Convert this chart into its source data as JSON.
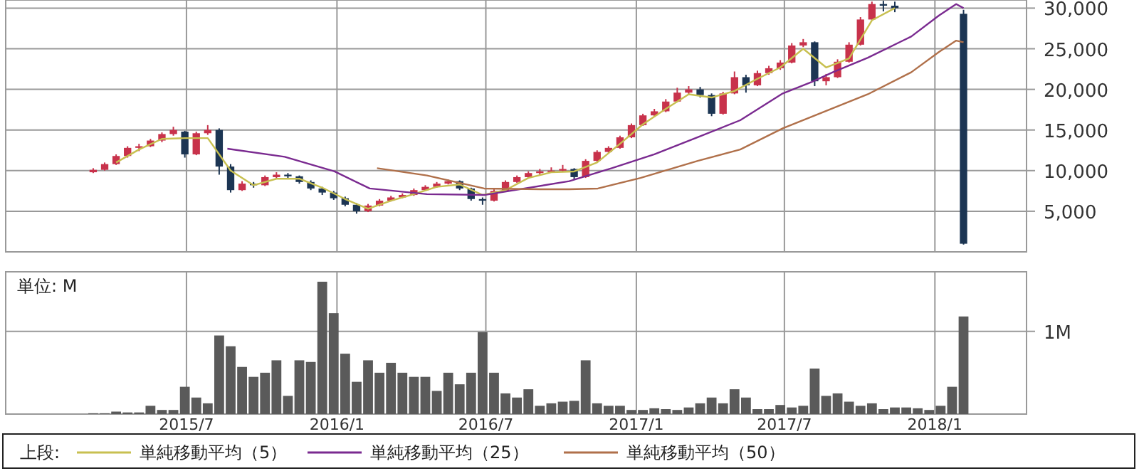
{
  "chart_data": [
    {
      "type": "candlestick",
      "x": [
        "2015-03-09",
        "2015-03-23",
        "2015-04-06",
        "2015-04-20",
        "2015-05-04",
        "2015-05-18",
        "2015-06-01",
        "2015-06-15",
        "2015-06-29",
        "2015-07-13",
        "2015-07-27",
        "2015-08-10",
        "2015-08-24",
        "2015-09-07",
        "2015-09-21",
        "2015-10-05",
        "2015-10-19",
        "2015-11-02",
        "2015-11-16",
        "2015-11-30",
        "2015-12-14",
        "2015-12-28",
        "2016-01-11",
        "2016-01-25",
        "2016-02-08",
        "2016-02-22",
        "2016-03-07",
        "2016-03-21",
        "2016-04-04",
        "2016-04-18",
        "2016-05-02",
        "2016-05-16",
        "2016-05-30",
        "2016-06-13",
        "2016-06-27",
        "2016-07-11",
        "2016-07-25",
        "2016-08-08",
        "2016-08-22",
        "2016-09-05",
        "2016-09-19",
        "2016-10-03",
        "2016-10-17",
        "2016-10-31",
        "2016-11-14",
        "2016-11-28",
        "2016-12-12",
        "2016-12-26",
        "2017-01-09",
        "2017-01-23",
        "2017-02-06",
        "2017-02-20",
        "2017-03-06",
        "2017-03-20",
        "2017-04-03",
        "2017-04-17",
        "2017-05-01",
        "2017-05-15",
        "2017-05-29",
        "2017-06-12",
        "2017-06-26",
        "2017-07-10",
        "2017-07-24",
        "2017-08-07",
        "2017-08-21",
        "2017-09-04",
        "2017-09-18",
        "2017-10-02",
        "2017-10-16",
        "2017-10-30",
        "2017-11-13",
        "2018-02-05"
      ],
      "xlim": [
        "2014-11-22",
        "2018-04-23"
      ],
      "xticks": [
        {
          "value": "2015-07-01",
          "label": null
        },
        {
          "value": "2016-01-01",
          "label": null
        },
        {
          "value": "2016-07-01",
          "label": null
        },
        {
          "value": "2017-01-01",
          "label": null
        },
        {
          "value": "2017-07-01",
          "label": null
        },
        {
          "value": "2018-01-01",
          "label": null
        }
      ],
      "ylim": [
        0,
        31000
      ],
      "yticks": [
        {
          "value": 5000,
          "label": "5,000"
        },
        {
          "value": 10000,
          "label": "10,000"
        },
        {
          "value": 15000,
          "label": "15,000"
        },
        {
          "value": 20000,
          "label": "20,000"
        },
        {
          "value": 25000,
          "label": "25,000"
        },
        {
          "value": 30000,
          "label": "30,000"
        }
      ],
      "tick_labels": "y",
      "grid": true,
      "legend": "bottom",
      "legend_title": "上段:",
      "series": [
        {
          "ohlc": [
            [
              9800,
              10300,
              9700,
              10100
            ],
            [
              10100,
              11000,
              10000,
              10800
            ],
            [
              10800,
              12000,
              10700,
              11800
            ],
            [
              11800,
              13000,
              11600,
              12800
            ],
            [
              12800,
              13300,
              12400,
              13000
            ],
            [
              13000,
              13900,
              12900,
              13700
            ],
            [
              13700,
              14700,
              13500,
              14500
            ],
            [
              14500,
              15400,
              14300,
              15000
            ],
            [
              14800,
              14900,
              11600,
              12000
            ],
            [
              12000,
              14800,
              11900,
              14600
            ],
            [
              14600,
              15600,
              14400,
              15000
            ],
            [
              15000,
              15200,
              9500,
              10500
            ],
            [
              10500,
              10800,
              7300,
              7600
            ],
            [
              7600,
              8700,
              7500,
              8400
            ],
            [
              8400,
              8600,
              7900,
              8200
            ],
            [
              8200,
              9400,
              8100,
              9200
            ],
            [
              9200,
              9800,
              9000,
              9500
            ],
            [
              9500,
              9700,
              9000,
              9300
            ],
            [
              9300,
              9400,
              8400,
              8600
            ],
            [
              8600,
              8800,
              7600,
              7800
            ],
            [
              7800,
              8000,
              7000,
              7300
            ],
            [
              7300,
              7500,
              6400,
              6600
            ],
            [
              6600,
              6800,
              5600,
              5800
            ],
            [
              5800,
              6000,
              4700,
              5000
            ],
            [
              5000,
              5900,
              4900,
              5700
            ],
            [
              5700,
              6500,
              5600,
              6300
            ],
            [
              6300,
              6900,
              6200,
              6700
            ],
            [
              6700,
              7200,
              6600,
              7000
            ],
            [
              7000,
              7800,
              6900,
              7600
            ],
            [
              7600,
              8200,
              7500,
              8000
            ],
            [
              8000,
              8600,
              7900,
              8400
            ],
            [
              8400,
              8900,
              8300,
              8700
            ],
            [
              8700,
              8800,
              7600,
              7800
            ],
            [
              7800,
              7900,
              6300,
              6500
            ],
            [
              6500,
              6700,
              5800,
              6300
            ],
            [
              6300,
              7700,
              6200,
              7500
            ],
            [
              7500,
              8800,
              7400,
              8600
            ],
            [
              8600,
              9400,
              8500,
              9200
            ],
            [
              9200,
              9900,
              9100,
              9700
            ],
            [
              9700,
              10200,
              9500,
              9900
            ],
            [
              9900,
              10400,
              9800,
              10000
            ],
            [
              10000,
              10700,
              9900,
              10200
            ],
            [
              10200,
              10300,
              8900,
              9200
            ],
            [
              9200,
              11400,
              9100,
              11200
            ],
            [
              11200,
              12500,
              11100,
              12300
            ],
            [
              12300,
              13000,
              12100,
              12800
            ],
            [
              12800,
              14300,
              12700,
              14100
            ],
            [
              14100,
              15800,
              14000,
              15600
            ],
            [
              15600,
              17000,
              15500,
              16800
            ],
            [
              16800,
              17600,
              16600,
              17300
            ],
            [
              17300,
              18800,
              17200,
              18500
            ],
            [
              18500,
              20200,
              18400,
              19600
            ],
            [
              19600,
              20400,
              19400,
              20000
            ],
            [
              20000,
              20300,
              19000,
              19300
            ],
            [
              19300,
              19500,
              16700,
              17000
            ],
            [
              17000,
              19700,
              16900,
              19500
            ],
            [
              19500,
              22200,
              19400,
              21500
            ],
            [
              21500,
              21800,
              19600,
              20500
            ],
            [
              20500,
              22300,
              20400,
              22000
            ],
            [
              22000,
              22900,
              21800,
              22600
            ],
            [
              22600,
              23600,
              22400,
              23300
            ],
            [
              23300,
              25700,
              23200,
              25400
            ],
            [
              25400,
              26200,
              25200,
              25800
            ],
            [
              25800,
              25900,
              20400,
              21000
            ],
            [
              21000,
              21900,
              20500,
              21500
            ],
            [
              21500,
              23700,
              21400,
              23400
            ],
            [
              23400,
              25800,
              23300,
              25500
            ],
            [
              25500,
              28900,
              25400,
              28600
            ],
            [
              28600,
              30800,
              28500,
              30500
            ],
            [
              30500,
              30900,
              29600,
              30300
            ],
            [
              30300,
              30800,
              29500,
              30000
            ],
            [
              29300,
              29800,
              900,
              1000
            ]
          ],
          "colors": [
            "#c8324b",
            "#c8324b",
            "#c8324b",
            "#c8324b",
            "#c8324b",
            "#c8324b",
            "#c8324b",
            "#c8324b",
            "#1c3553",
            "#c8324b",
            "#c8324b",
            "#1c3553",
            "#1c3553",
            "#c8324b",
            "#1c3553",
            "#c8324b",
            "#c8324b",
            "#1c3553",
            "#1c3553",
            "#1c3553",
            "#1c3553",
            "#1c3553",
            "#1c3553",
            "#1c3553",
            "#c8324b",
            "#c8324b",
            "#c8324b",
            "#c8324b",
            "#c8324b",
            "#c8324b",
            "#c8324b",
            "#c8324b",
            "#1c3553",
            "#1c3553",
            "#1c3553",
            "#c8324b",
            "#c8324b",
            "#c8324b",
            "#c8324b",
            "#c8324b",
            "#c8324b",
            "#c8324b",
            "#1c3553",
            "#c8324b",
            "#c8324b",
            "#c8324b",
            "#c8324b",
            "#c8324b",
            "#c8324b",
            "#c8324b",
            "#c8324b",
            "#c8324b",
            "#c8324b",
            "#1c3553",
            "#1c3553",
            "#c8324b",
            "#c8324b",
            "#1c3553",
            "#c8324b",
            "#c8324b",
            "#c8324b",
            "#c8324b",
            "#c8324b",
            "#1c3553",
            "#c8324b",
            "#c8324b",
            "#c8324b",
            "#c8324b",
            "#c8324b",
            "#1c3553",
            "#1c3553",
            "#1c3553"
          ]
        },
        {
          "type": "line",
          "name": "単純移動平均（5）",
          "color": "#c8c050",
          "x": [
            "2015-04-06",
            "2015-05-04",
            "2015-06-01",
            "2015-06-29",
            "2015-07-27",
            "2015-08-24",
            "2015-09-21",
            "2015-10-19",
            "2015-11-16",
            "2015-12-14",
            "2016-01-11",
            "2016-02-08",
            "2016-03-07",
            "2016-04-04",
            "2016-05-02",
            "2016-05-30",
            "2016-06-27",
            "2016-07-25",
            "2016-08-22",
            "2016-09-19",
            "2016-10-17",
            "2016-11-14",
            "2016-12-12",
            "2017-01-09",
            "2017-02-06",
            "2017-03-06",
            "2017-04-03",
            "2017-05-01",
            "2017-05-29",
            "2017-06-26",
            "2017-07-24",
            "2017-08-21",
            "2017-09-18",
            "2017-10-16",
            "2017-11-13"
          ],
          "values": [
            11000,
            12600,
            13900,
            14000,
            14000,
            10000,
            8200,
            9000,
            9000,
            7900,
            6500,
            5300,
            6300,
            7100,
            8000,
            8300,
            7000,
            7600,
            9100,
            9800,
            9900,
            11000,
            13300,
            15700,
            17600,
            19400,
            19000,
            19800,
            21300,
            22700,
            25000,
            22700,
            23800,
            28500,
            30000
          ]
        },
        {
          "type": "line",
          "name": "単純移動平均（25）",
          "color": "#7a2a90",
          "x": [
            "2015-08-20",
            "2015-10-29",
            "2015-12-29",
            "2016-02-10",
            "2016-04-20",
            "2016-06-29",
            "2016-10-11",
            "2016-12-02",
            "2017-01-23",
            "2017-03-17",
            "2017-05-08",
            "2017-06-29",
            "2017-08-03",
            "2017-08-29",
            "2017-10-11",
            "2017-12-03",
            "2018-01-06",
            "2018-01-27",
            "2018-02-05"
          ],
          "values": [
            12700,
            11700,
            9900,
            7800,
            7100,
            7000,
            8700,
            10300,
            12000,
            14100,
            16200,
            19500,
            20900,
            22100,
            23900,
            26500,
            29100,
            30500,
            30000
          ]
        },
        {
          "type": "line",
          "name": "単純移動平均（50）",
          "color": "#b0704a",
          "x": [
            "2016-02-19",
            "2016-04-20",
            "2016-06-29",
            "2016-09-06",
            "2016-10-11",
            "2016-11-15",
            "2017-01-06",
            "2017-03-17",
            "2017-05-08",
            "2017-06-29",
            "2017-08-20",
            "2017-10-11",
            "2017-12-03",
            "2018-01-06",
            "2018-01-27",
            "2018-02-05"
          ],
          "values": [
            10300,
            9400,
            7800,
            7700,
            7700,
            7800,
            9100,
            11200,
            12600,
            15200,
            17300,
            19400,
            22100,
            24600,
            26000,
            25800
          ]
        }
      ]
    },
    {
      "type": "bar",
      "ylabel": "単位: M",
      "color": "#5a5a5a",
      "x": [
        "2015-03-09",
        "2015-03-23",
        "2015-04-06",
        "2015-04-20",
        "2015-05-04",
        "2015-05-18",
        "2015-06-01",
        "2015-06-15",
        "2015-06-29",
        "2015-07-13",
        "2015-07-27",
        "2015-08-10",
        "2015-08-24",
        "2015-09-07",
        "2015-09-21",
        "2015-10-05",
        "2015-10-19",
        "2015-11-02",
        "2015-11-16",
        "2015-11-30",
        "2015-12-14",
        "2015-12-28",
        "2016-01-11",
        "2016-01-25",
        "2016-02-08",
        "2016-02-22",
        "2016-03-07",
        "2016-03-21",
        "2016-04-04",
        "2016-04-18",
        "2016-05-02",
        "2016-05-16",
        "2016-05-30",
        "2016-06-13",
        "2016-06-27",
        "2016-07-11",
        "2016-07-25",
        "2016-08-08",
        "2016-08-22",
        "2016-09-05",
        "2016-09-19",
        "2016-10-03",
        "2016-10-17",
        "2016-10-31",
        "2016-11-14",
        "2016-11-28",
        "2016-12-12",
        "2016-12-26",
        "2017-01-09",
        "2017-01-23",
        "2017-02-06",
        "2017-02-20",
        "2017-03-06",
        "2017-03-20",
        "2017-04-03",
        "2017-04-17",
        "2017-05-01",
        "2017-05-15",
        "2017-05-29",
        "2017-06-12",
        "2017-06-26",
        "2017-07-10",
        "2017-07-24",
        "2017-08-07",
        "2017-08-21",
        "2017-09-04",
        "2017-09-18",
        "2017-10-02",
        "2017-10-16",
        "2017-10-30",
        "2017-11-13",
        "2017-11-27",
        "2017-12-11",
        "2017-12-25",
        "2018-01-08",
        "2018-01-22",
        "2018-02-05"
      ],
      "values": [
        0.01,
        0.01,
        0.03,
        0.02,
        0.02,
        0.1,
        0.05,
        0.05,
        0.33,
        0.2,
        0.13,
        0.95,
        0.82,
        0.57,
        0.45,
        0.5,
        0.65,
        0.22,
        0.65,
        0.63,
        1.6,
        1.22,
        0.73,
        0.39,
        0.65,
        0.5,
        0.62,
        0.5,
        0.45,
        0.45,
        0.28,
        0.5,
        0.36,
        0.5,
        0.99,
        0.5,
        0.25,
        0.2,
        0.3,
        0.1,
        0.13,
        0.15,
        0.16,
        0.65,
        0.13,
        0.1,
        0.1,
        0.05,
        0.05,
        0.07,
        0.06,
        0.05,
        0.08,
        0.13,
        0.2,
        0.13,
        0.3,
        0.2,
        0.06,
        0.06,
        0.11,
        0.08,
        0.1,
        0.55,
        0.22,
        0.25,
        0.15,
        0.1,
        0.13,
        0.06,
        0.08,
        0.08,
        0.07,
        0.05,
        0.1,
        0.33,
        1.18
      ],
      "xlim": [
        "2014-11-22",
        "2018-04-23"
      ],
      "xticks": [
        {
          "value": "2015-07-01",
          "label": "2015/7"
        },
        {
          "value": "2016-01-01",
          "label": "2016/1"
        },
        {
          "value": "2016-07-01",
          "label": "2016/7"
        },
        {
          "value": "2017-01-01",
          "label": "2017/1"
        },
        {
          "value": "2017-07-01",
          "label": "2017/7"
        },
        {
          "value": "2018-01-01",
          "label": "2018/1"
        }
      ],
      "ylim": [
        0,
        1.72
      ],
      "yticks": [
        {
          "value": 1,
          "label": "1M"
        }
      ],
      "grid": true
    }
  ]
}
